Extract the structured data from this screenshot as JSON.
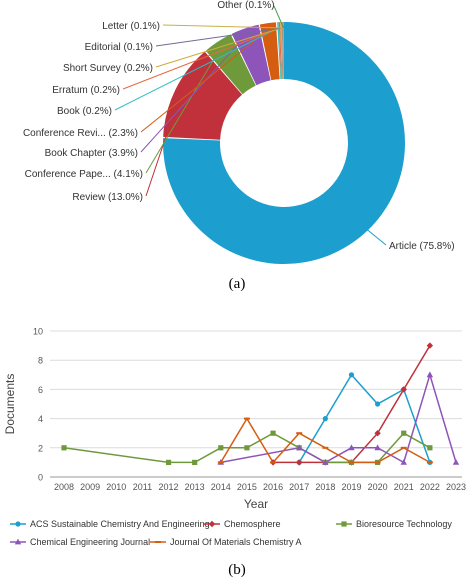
{
  "panels": {
    "a_caption": "(a)",
    "b_caption": "(b)"
  },
  "chart_data": [
    {
      "type": "pie",
      "subtype": "donut",
      "categories": [
        "Article",
        "Review",
        "Conference Pape...",
        "Book Chapter",
        "Conference Revi...",
        "Book",
        "Erratum",
        "Short Survey",
        "Editorial",
        "Letter",
        "Other"
      ],
      "values": [
        75.8,
        13.0,
        4.1,
        3.9,
        2.3,
        0.2,
        0.2,
        0.2,
        0.1,
        0.1,
        0.1
      ],
      "labels": [
        "Article (75.8%)",
        "Review (13.0%)",
        "Conference Pape... (4.1%)",
        "Book Chapter (3.9%)",
        "Conference Revi... (2.3%)",
        "Book (0.2%)",
        "Erratum (0.2%)",
        "Short Survey (0.2%)",
        "Editorial (0.1%)",
        "Letter (0.1%)",
        "Other (0.1%)"
      ],
      "colors": [
        "#1c9ecf",
        "#c0313b",
        "#6f9a3c",
        "#8d55b9",
        "#d45d12",
        "#2cbec5",
        "#e36a3c",
        "#d2a93a",
        "#6d6d95",
        "#c8b04a",
        "#4d9a52"
      ]
    },
    {
      "type": "line",
      "xlabel": "Year",
      "ylabel": "Documents",
      "x_ticks": [
        "2008",
        "2009",
        "2010",
        "2011",
        "2012",
        "2013",
        "2014",
        "2015",
        "2016",
        "2017",
        "2018",
        "2019",
        "2020",
        "2021",
        "2022",
        "2023"
      ],
      "y_ticks": [
        "0",
        "2",
        "4",
        "6",
        "8",
        "10"
      ],
      "ylim": [
        0,
        10
      ],
      "xlim": [
        2008,
        2023
      ],
      "grid": "horizontal",
      "legend_position": "bottom",
      "series": [
        {
          "name": "ACS Sustainable Chemistry And Engineering",
          "color": "#1c9ecf",
          "marker": "circle",
          "points": [
            [
              2017,
              1
            ],
            [
              2018,
              4
            ],
            [
              2019,
              7
            ],
            [
              2020,
              5
            ],
            [
              2021,
              6
            ],
            [
              2022,
              1
            ]
          ]
        },
        {
          "name": "Chemosphere",
          "color": "#c0313b",
          "marker": "diamond",
          "points": [
            [
              2016,
              1
            ],
            [
              2017,
              1
            ],
            [
              2018,
              1
            ],
            [
              2019,
              1
            ],
            [
              2020,
              3
            ],
            [
              2021,
              6
            ],
            [
              2022,
              9
            ]
          ]
        },
        {
          "name": "Bioresource Technology",
          "color": "#6f9a3c",
          "marker": "square",
          "points": [
            [
              2008,
              2
            ],
            [
              2012,
              1
            ],
            [
              2013,
              1
            ],
            [
              2014,
              2
            ],
            [
              2015,
              2
            ],
            [
              2016,
              3
            ],
            [
              2017,
              2
            ],
            [
              2018,
              1
            ],
            [
              2019,
              1
            ],
            [
              2020,
              1
            ],
            [
              2021,
              3
            ],
            [
              2022,
              2
            ]
          ]
        },
        {
          "name": "Chemical Engineering Journal",
          "color": "#8d55b9",
          "marker": "triangle",
          "points": [
            [
              2014,
              1
            ],
            [
              2017,
              2
            ],
            [
              2018,
              1
            ],
            [
              2019,
              2
            ],
            [
              2020,
              2
            ],
            [
              2021,
              1
            ],
            [
              2022,
              7
            ],
            [
              2023,
              1
            ]
          ]
        },
        {
          "name": "Journal Of Materials Chemistry A",
          "color": "#d45d12",
          "marker": "line",
          "points": [
            [
              2014,
              1
            ],
            [
              2015,
              4
            ],
            [
              2016,
              1
            ],
            [
              2017,
              3
            ],
            [
              2018,
              2
            ],
            [
              2019,
              1
            ],
            [
              2020,
              1
            ],
            [
              2021,
              2
            ],
            [
              2022,
              1
            ]
          ]
        }
      ]
    }
  ]
}
